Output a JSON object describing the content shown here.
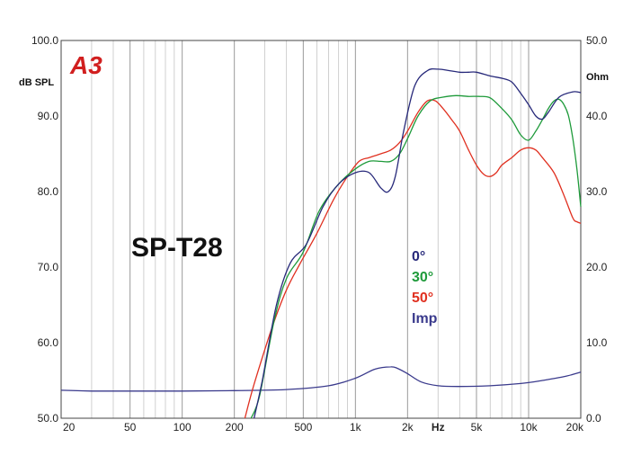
{
  "chart_data": {
    "type": "line",
    "title": "SP-T28",
    "xlabel": "Hz",
    "ylabel": "dB SPL",
    "y2label": "Ohm",
    "logo": "A3",
    "xscale": "log",
    "xlim": [
      20,
      20000
    ],
    "ylim": [
      50,
      100
    ],
    "y2lim": [
      0,
      50
    ],
    "grid": "vertical",
    "x_ticks": [
      {
        "value": 20,
        "label": "20"
      },
      {
        "value": 50,
        "label": "50"
      },
      {
        "value": 100,
        "label": "100"
      },
      {
        "value": 200,
        "label": "200"
      },
      {
        "value": 500,
        "label": "500"
      },
      {
        "value": 1000,
        "label": "1k"
      },
      {
        "value": 2000,
        "label": "2k"
      },
      {
        "value": 3000,
        "label": "Hz"
      },
      {
        "value": 5000,
        "label": "5k"
      },
      {
        "value": 10000,
        "label": "10k"
      },
      {
        "value": 20000,
        "label": "20k"
      }
    ],
    "y_ticks": [
      "50.0",
      "60.0",
      "70.0",
      "80.0",
      "90.0",
      "100.0"
    ],
    "y_tick_values": [
      50,
      60,
      70,
      80,
      90,
      100
    ],
    "y2_ticks": [
      "0.0",
      "10.0",
      "20.0",
      "30.0",
      "40.0",
      "50.0"
    ],
    "y2_tick_values": [
      0,
      10,
      20,
      30,
      40,
      50
    ],
    "legend": [
      {
        "label": "0°",
        "color": "#27297a"
      },
      {
        "label": "30°",
        "color": "#1e9a3a"
      },
      {
        "label": "50°",
        "color": "#e03020"
      },
      {
        "label": "Imp",
        "color": "#3a3a8c"
      }
    ],
    "series": [
      {
        "name": "0°",
        "color": "#27297a",
        "axis": "left",
        "x": [
          260,
          290,
          350,
          420,
          520,
          650,
          800,
          1000,
          1200,
          1400,
          1550,
          1700,
          1900,
          2200,
          2600,
          3000,
          3500,
          4000,
          4500,
          5000,
          6000,
          7000,
          8000,
          9000,
          10000,
          11000,
          12000,
          13000,
          15000,
          18000,
          20000
        ],
        "y": [
          50.0,
          55.0,
          65.0,
          70.5,
          73.0,
          78.0,
          81.0,
          82.5,
          82.5,
          80.5,
          80.0,
          82.0,
          88.0,
          94.0,
          96.0,
          96.2,
          96.0,
          95.8,
          95.8,
          95.8,
          95.3,
          95.0,
          94.5,
          93.0,
          91.5,
          90.0,
          89.6,
          90.5,
          92.5,
          93.2,
          93.1
        ]
      },
      {
        "name": "30°",
        "color": "#1e9a3a",
        "axis": "left",
        "x": [
          250,
          280,
          340,
          400,
          500,
          620,
          800,
          1000,
          1200,
          1400,
          1600,
          1800,
          2000,
          2300,
          2700,
          3200,
          3800,
          4500,
          5200,
          6000,
          7000,
          8000,
          9000,
          10000,
          11000,
          12000,
          13000,
          14000,
          15000,
          16000,
          17000,
          18000,
          19000,
          20000
        ],
        "y": [
          50.0,
          53.0,
          63.0,
          68.5,
          72.0,
          77.5,
          81.0,
          83.0,
          84.0,
          84.0,
          84.0,
          85.0,
          87.0,
          90.0,
          92.0,
          92.5,
          92.7,
          92.6,
          92.6,
          92.4,
          91.0,
          89.5,
          87.5,
          86.8,
          88.0,
          89.5,
          91.0,
          92.0,
          92.2,
          91.5,
          90.0,
          87.0,
          83.0,
          78.0
        ]
      },
      {
        "name": "50°",
        "color": "#e03020",
        "axis": "left",
        "x": [
          230,
          260,
          330,
          400,
          480,
          600,
          750,
          900,
          1050,
          1200,
          1400,
          1600,
          1800,
          2000,
          2300,
          2600,
          2900,
          3200,
          3600,
          4000,
          4500,
          5000,
          5500,
          6000,
          6500,
          7000,
          8000,
          9000,
          10000,
          11000,
          12000,
          14000,
          16000,
          18000,
          19000,
          20000
        ],
        "y": [
          50.0,
          54.5,
          62.0,
          67.0,
          70.5,
          74.5,
          79.0,
          82.0,
          84.0,
          84.5,
          85.0,
          85.5,
          86.5,
          88.0,
          90.5,
          92.0,
          92.0,
          91.0,
          89.5,
          88.0,
          85.5,
          83.5,
          82.3,
          82.0,
          82.5,
          83.5,
          84.5,
          85.5,
          85.8,
          85.5,
          84.5,
          82.5,
          79.5,
          76.5,
          76.0,
          75.8
        ]
      },
      {
        "name": "Imp",
        "color": "#3a3a8c",
        "axis": "right",
        "x": [
          20,
          30,
          50,
          100,
          200,
          400,
          700,
          1000,
          1300,
          1600,
          1750,
          2000,
          2400,
          3000,
          4000,
          6000,
          9000,
          12000,
          16000,
          20000
        ],
        "y": [
          3.7,
          3.6,
          3.6,
          3.6,
          3.65,
          3.8,
          4.3,
          5.3,
          6.5,
          6.8,
          6.6,
          5.9,
          4.8,
          4.3,
          4.2,
          4.3,
          4.6,
          5.0,
          5.5,
          6.1
        ]
      }
    ]
  }
}
